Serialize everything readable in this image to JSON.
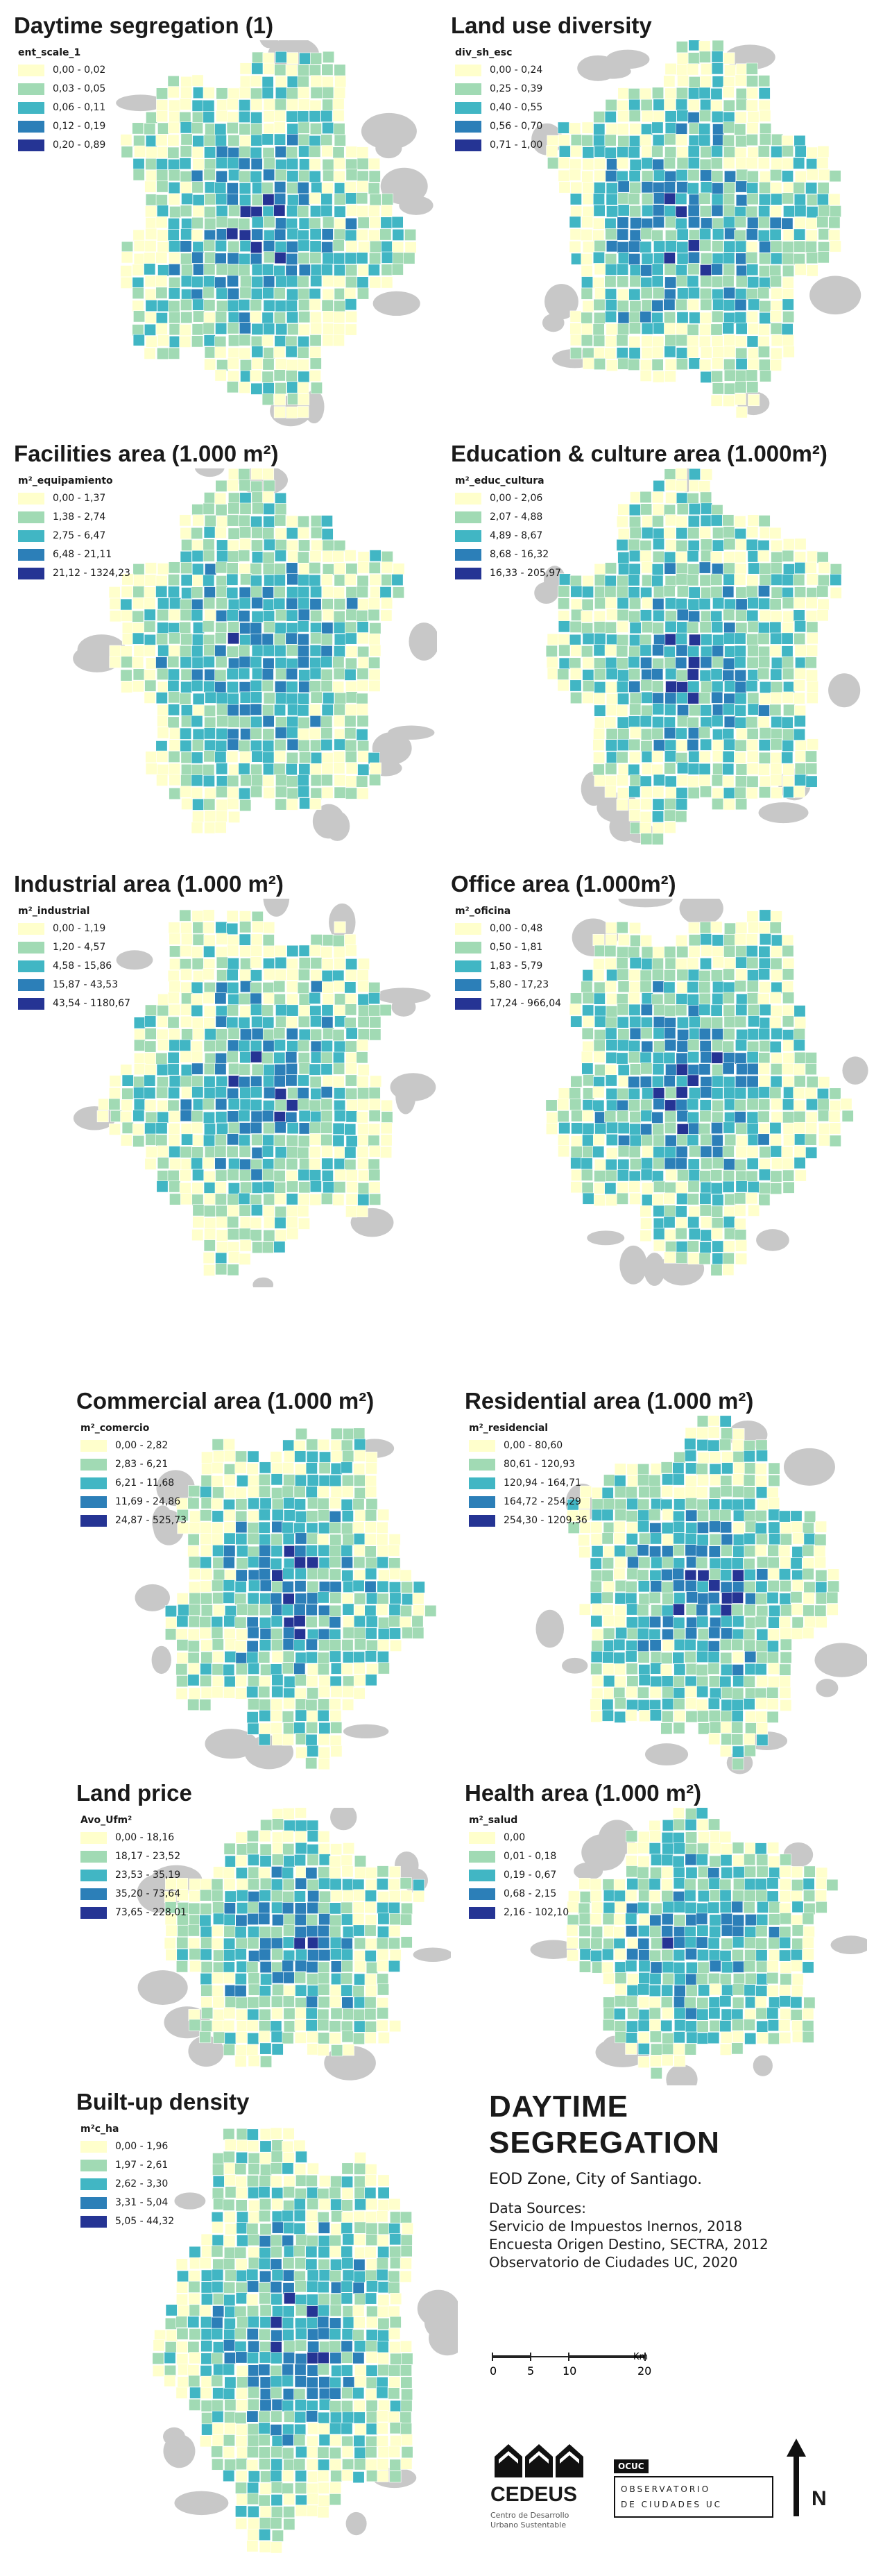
{
  "palette": [
    "#ffffcc",
    "#a1dab4",
    "#41b6c4",
    "#2c7fb8",
    "#253494"
  ],
  "icons": [
    "cedeus-logo-icon",
    "north-arrow-icon"
  ],
  "panels": [
    {
      "title": "Daytime segregation (1)",
      "field": "ent_scale_1",
      "legend": [
        "0,00 - 0,02",
        "0,03 - 0,05",
        "0,06 - 0,11",
        "0,12 - 0,19",
        "0,20 - 0,89"
      ]
    },
    {
      "title": "Land use diversity",
      "field": "div_sh_esc",
      "legend": [
        "0,00 - 0,24",
        "0,25 - 0,39",
        "0,40 - 0,55",
        "0,56 - 0,70",
        "0,71 - 1,00"
      ]
    },
    {
      "title": "Facilities area (1.000 m²)",
      "field": "m²_equipamiento",
      "legend": [
        "0,00 - 1,37",
        "1,38 - 2,74",
        "2,75 - 6,47",
        "6,48 - 21,11",
        "21,12 - 1324,23"
      ]
    },
    {
      "title": "Education & culture area (1.000m²)",
      "field": "m²_educ_cultura",
      "legend": [
        "0,00 - 2,06",
        "2,07 - 4,88",
        "4,89 - 8,67",
        "8,68 - 16,32",
        "16,33 - 205,97"
      ]
    },
    {
      "title": "Industrial area (1.000 m²)",
      "field": "m²_industrial",
      "legend": [
        "0,00 - 1,19",
        "1,20 - 4,57",
        "4,58 - 15,86",
        "15,87 - 43,53",
        "43,54 - 1180,67"
      ]
    },
    {
      "title": "Office area (1.000m²)",
      "field": "m²_oficina",
      "legend": [
        "0,00 - 0,48",
        "0,50 - 1,81",
        "1,83 - 5,79",
        "5,80 - 17,23",
        "17,24 - 966,04"
      ]
    },
    {
      "title": "Commercial area (1.000 m²)",
      "field": "m²_comercio",
      "legend": [
        "0,00 - 2,82",
        "2,83 - 6,21",
        "6,21 - 11,68",
        "11,69 - 24,86",
        "24,87 - 525,73"
      ]
    },
    {
      "title": "Residential area (1.000 m²)",
      "field": "m²_residencial",
      "legend": [
        "0,00 - 80,60",
        "80,61 - 120,93",
        "120,94 - 164,71",
        "164,72 - 254,29",
        "254,30 - 1209,36"
      ]
    },
    {
      "title": "Land price",
      "field": "Avo_Ufm²",
      "legend": [
        "0,00 - 18,16",
        "18,17 - 23,52",
        "23,53 - 35,19",
        "35,20 - 73,64",
        "73,65 - 228,01"
      ]
    },
    {
      "title": "Health area (1.000 m²)",
      "field": "m²_salud",
      "legend": [
        "0,00",
        "0,01 - 0,18",
        "0,19 - 0,67",
        "0,68 - 2,15",
        "2,16 - 102,10"
      ]
    },
    {
      "title": "Built-up density",
      "field": "m²c_ha",
      "legend": [
        "0,00 - 1,96",
        "1,97 - 2,61",
        "2,62 - 3,30",
        "3,31 - 5,04",
        "5,05 - 44,32"
      ]
    }
  ],
  "info": {
    "title_line1": "DAYTIME",
    "title_line2": "SEGREGATION",
    "subtitle": "EOD Zone, City of Santiago.",
    "sources_label": "Data Sources:",
    "sources": [
      "Servicio de Impuestos Inernos, 2018",
      "Encuesta Origen Destino, SECTRA, 2012",
      "Observatorio de Ciudades UC, 2020"
    ]
  },
  "scale_bar": {
    "ticks": [
      "0",
      "5",
      "10",
      "20"
    ],
    "unit": "Km"
  },
  "logos": {
    "cedeus_name": "CEDEUS",
    "cedeus_tagline": "Centro de Desarrollo Urbano Sustentable",
    "ocuc_badge": "OCUC",
    "ocuc_line1": "OBSERVATORIO",
    "ocuc_line2": "DE CIUDADES UC"
  },
  "north_label": "N"
}
